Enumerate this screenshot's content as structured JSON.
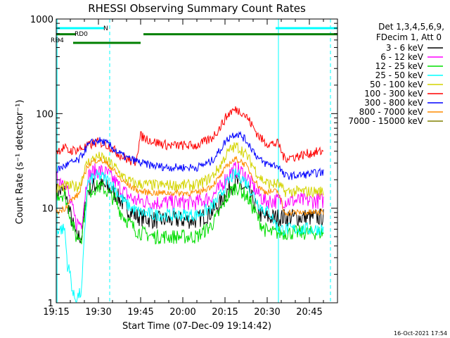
{
  "chart_data": {
    "type": "line",
    "title": "RHESSI Observing Summary Count Rates",
    "xlabel": "Start Time (07-Dec-09 19:14:42)",
    "ylabel": "Count Rate (s⁻¹ detector⁻¹)",
    "y_scale": "log",
    "ylim": [
      1,
      1000
    ],
    "xlim_min": [
      1155,
      1255
    ],
    "x_tick_labels": [
      "19:15",
      "19:30",
      "19:45",
      "20:00",
      "20:15",
      "20:30",
      "20:45"
    ],
    "x_ticks_min": [
      1155,
      1170,
      1185,
      1200,
      1215,
      1230,
      1245
    ],
    "y_tick_labels": [
      "1",
      "10",
      "100",
      "1000"
    ],
    "y_ticks": [
      1,
      10,
      100,
      1000
    ],
    "legend_header": [
      "Det 1,3,4,5,6,9,",
      "FDecim 1, Att 0"
    ],
    "legend_position": "top-right",
    "timestamp": "16-Oct-2021 17:54",
    "series": [
      {
        "name": "3 - 6 keV",
        "color": "#000000",
        "x": [
          1155,
          1158,
          1162,
          1164,
          1166,
          1168,
          1170,
          1172,
          1174,
          1176,
          1178,
          1180,
          1183,
          1185,
          1190,
          1195,
          1200,
          1205,
          1210,
          1213,
          1215,
          1217,
          1219,
          1221,
          1223,
          1225,
          1227,
          1229,
          1231,
          1234,
          1236,
          1240,
          1245,
          1250
        ],
        "y": [
          15,
          15,
          5,
          5,
          15,
          17,
          18,
          17,
          16,
          14,
          12,
          10,
          8.5,
          8,
          7.5,
          7.5,
          7.5,
          7.5,
          9,
          11,
          14,
          17,
          19,
          17,
          15,
          12,
          9,
          8,
          8,
          8,
          8,
          8,
          8,
          8
        ]
      },
      {
        "name": "6 - 12 keV",
        "color": "#ff00ff",
        "x": [
          1155,
          1158,
          1162,
          1164,
          1166,
          1168,
          1170,
          1172,
          1174,
          1176,
          1178,
          1180,
          1183,
          1185,
          1190,
          1195,
          1200,
          1205,
          1210,
          1213,
          1215,
          1217,
          1219,
          1221,
          1223,
          1225,
          1227,
          1229,
          1231,
          1234,
          1236,
          1240,
          1245,
          1250
        ],
        "y": [
          20,
          20,
          7,
          7,
          21,
          24,
          25,
          24,
          22,
          19,
          16,
          14,
          12,
          12,
          11.5,
          11.5,
          11.5,
          11.5,
          13,
          16,
          20,
          24,
          26,
          24,
          21,
          17,
          14,
          12,
          12,
          12,
          12,
          12,
          12,
          12
        ]
      },
      {
        "name": "12 - 25 keV",
        "color": "#00dd00",
        "x": [
          1155,
          1158,
          1162,
          1164,
          1166,
          1168,
          1170,
          1172,
          1174,
          1176,
          1178,
          1180,
          1183,
          1185,
          1190,
          1195,
          1200,
          1205,
          1210,
          1213,
          1215,
          1217,
          1219,
          1221,
          1223,
          1225,
          1227,
          1229,
          1231,
          1234,
          1236,
          1240,
          1245,
          1250
        ],
        "y": [
          14,
          14,
          5,
          5,
          14,
          16,
          17,
          16,
          14,
          12,
          9,
          7.5,
          6,
          5.5,
          5,
          5,
          5,
          5,
          6.5,
          9,
          12,
          15,
          17,
          15,
          13,
          10,
          7.5,
          6,
          5.5,
          5.5,
          5.5,
          5.5,
          5.5,
          5.5
        ]
      },
      {
        "name": "25 - 50 keV",
        "color": "#00ffff",
        "x": [
          1155,
          1157,
          1158,
          1159,
          1160,
          1161,
          1162,
          1163,
          1164,
          1166,
          1168,
          1170,
          1172,
          1174,
          1176,
          1178,
          1180,
          1183,
          1185,
          1190,
          1195,
          1200,
          1205,
          1210,
          1213,
          1215,
          1217,
          1219,
          1221,
          1223,
          1225,
          1227,
          1229,
          1231,
          1234,
          1236,
          1240,
          1245,
          1250
        ],
        "y": [
          6,
          6,
          6,
          2.5,
          2,
          1.2,
          1.1,
          1.2,
          1.3,
          18,
          21,
          22,
          21,
          19,
          16,
          13,
          11,
          9.5,
          9,
          8.5,
          8.5,
          8.5,
          8.5,
          10,
          13,
          17,
          21,
          23,
          21,
          18,
          14,
          11,
          9.5,
          9,
          6,
          6,
          6,
          6,
          6
        ]
      },
      {
        "name": "50 - 100 keV",
        "color": "#d4d400",
        "x": [
          1155,
          1158,
          1160,
          1163,
          1166,
          1168,
          1170,
          1172,
          1174,
          1176,
          1178,
          1180,
          1183,
          1185,
          1190,
          1195,
          1200,
          1205,
          1210,
          1213,
          1215,
          1217,
          1219,
          1221,
          1223,
          1225,
          1227,
          1229,
          1231,
          1234,
          1236,
          1240,
          1245,
          1250
        ],
        "y": [
          16,
          17,
          17,
          17,
          30,
          33,
          35,
          33,
          30,
          27,
          23,
          20,
          18,
          18,
          17.5,
          17.5,
          17.5,
          17.5,
          21,
          27,
          35,
          42,
          45,
          41,
          35,
          28,
          22,
          19,
          18,
          18,
          15,
          15,
          15,
          15
        ]
      },
      {
        "name": "100 - 300 keV",
        "color": "#ff0000",
        "x": [
          1155,
          1158,
          1159,
          1163,
          1166,
          1168,
          1170,
          1172,
          1174,
          1176,
          1178,
          1180,
          1183,
          1185,
          1190,
          1195,
          1200,
          1205,
          1210,
          1213,
          1215,
          1217,
          1219,
          1221,
          1223,
          1225,
          1227,
          1229,
          1231,
          1234,
          1236,
          1240,
          1245,
          1250
        ],
        "y": [
          40,
          44,
          40,
          42,
          45,
          48,
          50,
          48,
          45,
          40,
          36,
          33,
          30,
          58,
          50,
          46,
          46,
          46,
          54,
          70,
          88,
          105,
          110,
          105,
          90,
          72,
          58,
          50,
          48,
          48,
          34,
          35,
          38,
          40
        ]
      },
      {
        "name": "300 - 800 keV",
        "color": "#0000ff",
        "x": [
          1155,
          1158,
          1160,
          1163,
          1166,
          1168,
          1170,
          1172,
          1174,
          1176,
          1178,
          1180,
          1183,
          1185,
          1190,
          1195,
          1200,
          1205,
          1210,
          1213,
          1215,
          1217,
          1219,
          1221,
          1223,
          1225,
          1227,
          1229,
          1231,
          1234,
          1236,
          1240,
          1245,
          1250
        ],
        "y": [
          25,
          28,
          30,
          32,
          45,
          50,
          52,
          50,
          46,
          41,
          37,
          34,
          32,
          30,
          28,
          27,
          27,
          27,
          31,
          40,
          50,
          58,
          62,
          58,
          50,
          41,
          33,
          30,
          29,
          28,
          22,
          22,
          23,
          24
        ]
      },
      {
        "name": "800 - 7000 keV",
        "color": "#ff8c00",
        "x": [
          1155,
          1158,
          1160,
          1163,
          1166,
          1168,
          1170,
          1172,
          1174,
          1176,
          1178,
          1180,
          1183,
          1185,
          1190,
          1195,
          1200,
          1205,
          1210,
          1213,
          1215,
          1217,
          1219,
          1221,
          1223,
          1225,
          1227,
          1229,
          1231,
          1234,
          1236,
          1240,
          1245,
          1250
        ],
        "y": [
          9,
          10,
          12,
          14,
          28,
          31,
          33,
          31,
          28,
          24,
          20,
          18,
          16,
          15,
          14.5,
          14.5,
          14.5,
          14.5,
          17,
          21,
          26,
          31,
          33,
          31,
          27,
          21,
          17,
          15,
          15,
          15,
          9,
          9,
          9,
          9
        ]
      },
      {
        "name": "7000 - 15000 keV",
        "color": "#808000",
        "x": [],
        "y": []
      }
    ],
    "decimation_flags": [
      {
        "name": "N",
        "color": "#00ffff",
        "segments": [
          [
            1155,
            1172
          ],
          [
            1233,
            1255
          ]
        ],
        "level": 800
      },
      {
        "name": "RD0",
        "color": "#008000",
        "segments": [
          [
            1155,
            1162
          ],
          [
            1186,
            1255
          ]
        ],
        "level": 690
      },
      {
        "name": "RD4",
        "color": "#008000",
        "segments": [
          [
            1161,
            1185
          ]
        ],
        "level": 560
      }
    ],
    "reference_lines": [
      {
        "x": 1155.3,
        "style": "solid"
      },
      {
        "x": 1174,
        "style": "dashed"
      },
      {
        "x": 1234,
        "style": "solid"
      },
      {
        "x": 1252.5,
        "style": "dashed"
      }
    ],
    "reference_line_color": "#00ffff"
  }
}
